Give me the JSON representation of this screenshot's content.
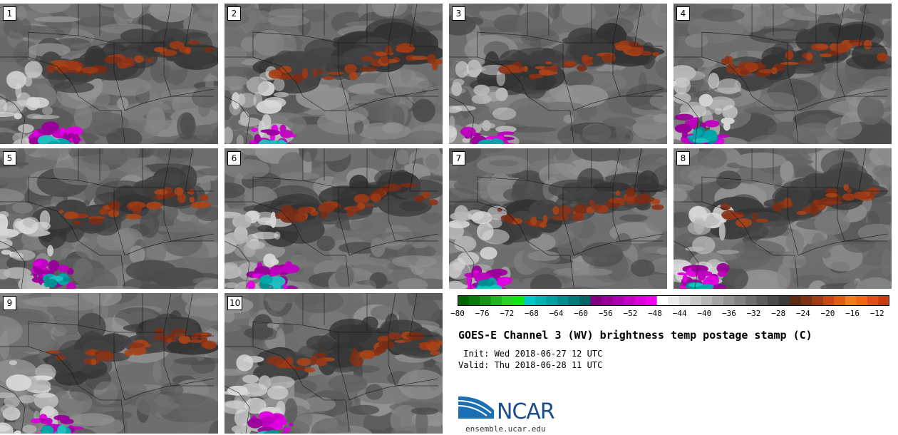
{
  "panels": [
    {
      "label": "1"
    },
    {
      "label": "2"
    },
    {
      "label": "3"
    },
    {
      "label": "4"
    },
    {
      "label": "5"
    },
    {
      "label": "6"
    },
    {
      "label": "7"
    },
    {
      "label": "8"
    },
    {
      "label": "9"
    },
    {
      "label": "10"
    }
  ],
  "colorbar": {
    "range": [
      -80,
      -10
    ],
    "step": 2,
    "tick_labels": [
      "−80",
      "−76",
      "−72",
      "−68",
      "−64",
      "−60",
      "−56",
      "−52",
      "−48",
      "−44",
      "−40",
      "−36",
      "−32",
      "−28",
      "−24",
      "−20",
      "−16",
      "−12"
    ],
    "colors": [
      "#006400",
      "#0a7a0a",
      "#149614",
      "#1eb41e",
      "#28d228",
      "#0fe80f",
      "#00c8c8",
      "#00b4b4",
      "#00a0a0",
      "#008c8c",
      "#007878",
      "#006464",
      "#800080",
      "#960096",
      "#ad00ad",
      "#c400c4",
      "#db00db",
      "#f000f0",
      "#ffffff",
      "#ececec",
      "#dadada",
      "#c8c8c8",
      "#b6b6b6",
      "#a4a4a4",
      "#929292",
      "#808080",
      "#6e6e6e",
      "#5c5c5c",
      "#4a4a4a",
      "#3a3a3a",
      "#5a2a14",
      "#7a3214",
      "#a03a14",
      "#c84614",
      "#e05a14",
      "#f07a1e",
      "#f06414",
      "#e04c14",
      "#c83c10"
    ]
  },
  "title": "GOES-E Channel 3 (WV) brightness temp postage stamp (C)",
  "init_line": " Init: Wed 2018-06-27 12 UTC",
  "valid_line": "Valid: Thu 2018-06-28 11 UTC",
  "logo_text": "NCAR",
  "site": "ensemble.ucar.edu"
}
